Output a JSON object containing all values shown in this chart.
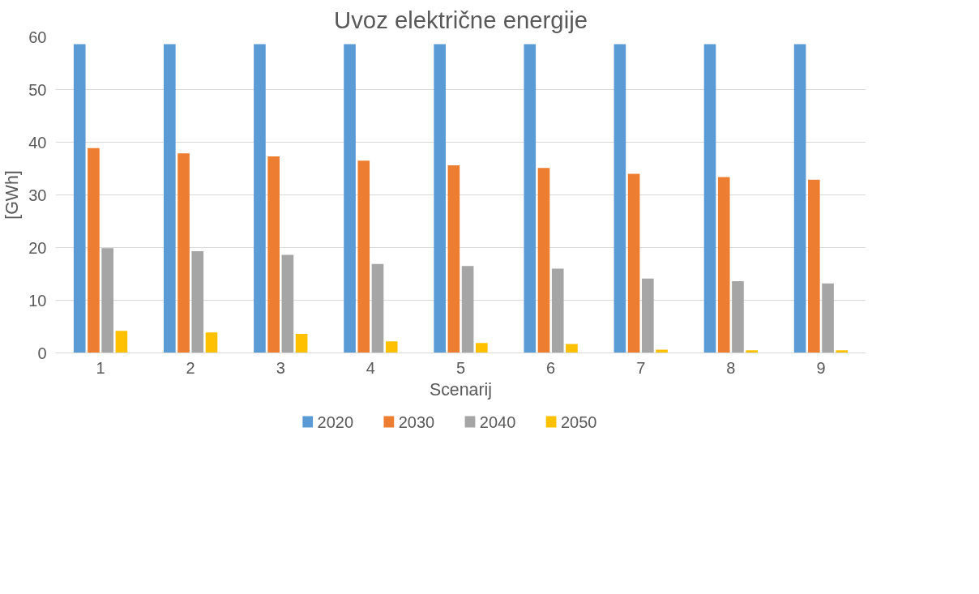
{
  "chart_data": {
    "type": "bar",
    "title": "Uvoz električne energije",
    "xlabel": "Scenarij",
    "ylabel": "[GWh]",
    "categories": [
      "1",
      "2",
      "3",
      "4",
      "5",
      "6",
      "7",
      "8",
      "9"
    ],
    "series": [
      {
        "name": "2020",
        "color": "#5b9bd5",
        "values": [
          58.6,
          58.6,
          58.6,
          58.6,
          58.6,
          58.6,
          58.6,
          58.6,
          58.6
        ]
      },
      {
        "name": "2030",
        "color": "#ed7d31",
        "values": [
          38.9,
          37.9,
          37.3,
          36.5,
          35.6,
          35.1,
          34.0,
          33.4,
          32.9
        ]
      },
      {
        "name": "2040",
        "color": "#a5a5a5",
        "values": [
          19.9,
          19.3,
          18.6,
          16.9,
          16.5,
          16.0,
          14.1,
          13.6,
          13.2
        ]
      },
      {
        "name": "2050",
        "color": "#ffc000",
        "values": [
          4.2,
          3.9,
          3.6,
          2.2,
          1.9,
          1.7,
          0.6,
          0.5,
          0.5
        ]
      }
    ],
    "ylim": [
      0,
      60
    ],
    "yticks": [
      0,
      10,
      20,
      30,
      40,
      50,
      60
    ],
    "grid": "y",
    "legend": "bottom"
  }
}
